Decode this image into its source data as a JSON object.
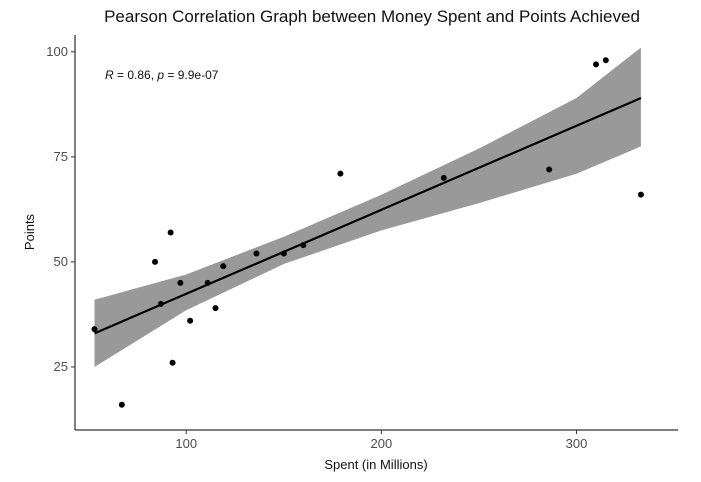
{
  "chart_data": {
    "type": "scatter",
    "title": "Pearson Correlation Graph between Money Spent and Points Achieved",
    "xlabel": "Spent (in Millions)",
    "ylabel": "Points",
    "xlim": [
      43,
      352
    ],
    "ylim": [
      10,
      104
    ],
    "x_ticks": [
      100,
      200,
      300
    ],
    "y_ticks": [
      25,
      50,
      75,
      100
    ],
    "grid": false,
    "annotation": {
      "r_symbol": "R",
      "r_text": " = 0.86, ",
      "p_symbol": "p",
      "p_text": " = 9.9e-07"
    },
    "points": [
      {
        "x": 53,
        "y": 34
      },
      {
        "x": 67,
        "y": 16
      },
      {
        "x": 84,
        "y": 50
      },
      {
        "x": 87,
        "y": 40
      },
      {
        "x": 92,
        "y": 57
      },
      {
        "x": 93,
        "y": 26
      },
      {
        "x": 97,
        "y": 45
      },
      {
        "x": 102,
        "y": 36
      },
      {
        "x": 111,
        "y": 45
      },
      {
        "x": 115,
        "y": 39
      },
      {
        "x": 119,
        "y": 49
      },
      {
        "x": 136,
        "y": 52
      },
      {
        "x": 150,
        "y": 52
      },
      {
        "x": 160,
        "y": 54
      },
      {
        "x": 179,
        "y": 71
      },
      {
        "x": 232,
        "y": 70
      },
      {
        "x": 286,
        "y": 72
      },
      {
        "x": 310,
        "y": 97
      },
      {
        "x": 315,
        "y": 98
      },
      {
        "x": 333,
        "y": 66
      }
    ],
    "fit_line": {
      "x": [
        53,
        333
      ],
      "y": [
        33,
        89
      ]
    },
    "confidence_band": {
      "x": [
        53,
        100,
        150,
        200,
        250,
        300,
        333
      ],
      "lower": [
        25,
        38.5,
        49.5,
        57.5,
        64,
        71,
        77.5
      ],
      "upper": [
        41,
        47,
        56,
        66,
        77,
        89,
        101
      ]
    },
    "colors": {
      "points": "#000000",
      "fit_line": "#000000",
      "band": "#999999"
    }
  }
}
